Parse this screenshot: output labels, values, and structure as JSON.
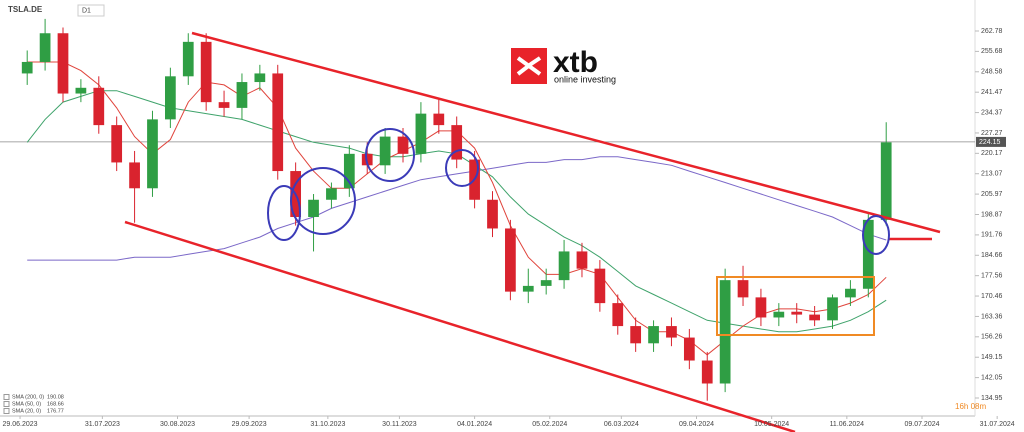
{
  "chart_data": {
    "type": "candlestick",
    "symbol": "TSLA.DE",
    "timeframe": "D1",
    "x": [
      2,
      7,
      12,
      17,
      22,
      27,
      32,
      37,
      42,
      47,
      52,
      57,
      62,
      67,
      72,
      77,
      82,
      87,
      92,
      97,
      102,
      107,
      112,
      117,
      122,
      127,
      132,
      137,
      142,
      147,
      152,
      157,
      162,
      167,
      172,
      177,
      182,
      187,
      192,
      197,
      202,
      207,
      212,
      217,
      222,
      227,
      232,
      237,
      242
    ],
    "open": [
      248,
      252,
      262,
      241,
      243,
      230,
      217,
      208,
      232,
      247,
      259,
      238,
      236,
      245,
      248,
      214,
      198,
      204,
      208,
      220,
      216,
      226,
      220,
      234,
      230,
      218,
      204,
      194,
      172,
      174,
      176,
      186,
      180,
      168,
      160,
      154,
      160,
      156,
      148,
      140,
      176,
      170,
      163,
      165,
      164,
      162,
      170,
      173,
      197
    ],
    "high": [
      256,
      267,
      264,
      246,
      247,
      233,
      221,
      235,
      250,
      262,
      262,
      242,
      248,
      251,
      251,
      217,
      206,
      210,
      223,
      224,
      229,
      229,
      238,
      239,
      233,
      221,
      207,
      197,
      180,
      180,
      190,
      189,
      183,
      171,
      163,
      162,
      163,
      159,
      151,
      180,
      181,
      173,
      168,
      168,
      167,
      171,
      176,
      199,
      231
    ],
    "low": [
      244,
      249,
      238,
      238,
      227,
      214,
      196,
      205,
      229,
      244,
      235,
      233,
      232,
      242,
      211,
      195,
      186,
      201,
      205,
      213,
      213,
      217,
      217,
      227,
      215,
      201,
      191,
      169,
      168,
      171,
      173,
      177,
      165,
      157,
      151,
      151,
      153,
      145,
      134,
      137,
      167,
      160,
      160,
      161,
      160,
      159,
      167,
      170,
      195
    ],
    "close": [
      252,
      262,
      241,
      243,
      230,
      217,
      208,
      232,
      247,
      259,
      238,
      236,
      245,
      248,
      214,
      198,
      204,
      208,
      220,
      216,
      226,
      220,
      234,
      230,
      218,
      204,
      194,
      172,
      174,
      176,
      186,
      180,
      168,
      160,
      154,
      160,
      156,
      148,
      140,
      176,
      170,
      163,
      165,
      164,
      162,
      170,
      173,
      197,
      224
    ],
    "up_color": "#2f9e44",
    "down_color": "#d9232e",
    "series": [
      {
        "name": "SMA (200, 0)",
        "last_value": 190.08,
        "color": "#7b68c8",
        "values": [
          183,
          183,
          183,
          183,
          183,
          183,
          184,
          184,
          184,
          185,
          186,
          187,
          189,
          191,
          194,
          196,
          198,
          201,
          203,
          205,
          207,
          209,
          211,
          212,
          213,
          214,
          215,
          216,
          217,
          217,
          218,
          218,
          219,
          219,
          218,
          217,
          216,
          214,
          212,
          210,
          208,
          206,
          204,
          202,
          200,
          198,
          195,
          192,
          190
        ]
      },
      {
        "name": "SMA (50, 0)",
        "last_value": 168.66,
        "color": "#3fa36b",
        "values": [
          224,
          232,
          238,
          240,
          242,
          242,
          240,
          238,
          236,
          235,
          234,
          233,
          232,
          230,
          228,
          226,
          224,
          223,
          222,
          220,
          219,
          219,
          220,
          221,
          220,
          216,
          212,
          205,
          199,
          195,
          191,
          188,
          184,
          179,
          174,
          171,
          168,
          165,
          162,
          161,
          160,
          159,
          158,
          158,
          159,
          160,
          162,
          165,
          169
        ]
      },
      {
        "name": "SMA (20, 0)",
        "last_value": 176.77,
        "color": "#e0443c",
        "values": [
          252,
          252,
          252,
          249,
          244,
          236,
          226,
          220,
          225,
          238,
          245,
          244,
          240,
          243,
          236,
          222,
          214,
          208,
          208,
          213,
          218,
          221,
          224,
          228,
          228,
          222,
          210,
          195,
          184,
          178,
          178,
          180,
          178,
          170,
          162,
          158,
          158,
          155,
          150,
          155,
          160,
          164,
          166,
          166,
          165,
          166,
          168,
          171,
          177
        ]
      }
    ],
    "last_price": 224.15,
    "countdown": "16h 08m",
    "xlim": [
      -5.6,
      280.5
    ],
    "ylim": [
      128.68,
      273.58
    ],
    "xticks": [
      {
        "value": 0,
        "label": "29.06.2023"
      },
      {
        "value": 23,
        "label": "31.07.2023"
      },
      {
        "value": 44,
        "label": "30.08.2023"
      },
      {
        "value": 64,
        "label": "29.09.2023"
      },
      {
        "value": 86,
        "label": "31.10.2023"
      },
      {
        "value": 106,
        "label": "30.11.2023"
      },
      {
        "value": 127,
        "label": "04.01.2024"
      },
      {
        "value": 148,
        "label": "05.02.2024"
      },
      {
        "value": 168,
        "label": "06.03.2024"
      },
      {
        "value": 189,
        "label": "09.04.2024"
      },
      {
        "value": 210,
        "label": "10.05.2024"
      },
      {
        "value": 231,
        "label": "11.06.2024"
      },
      {
        "value": 252,
        "label": "09.07.2024"
      },
      {
        "value": 273,
        "label": "31.07.2024"
      }
    ],
    "yticks": [
      262.78,
      255.68,
      248.58,
      241.47,
      234.37,
      227.27,
      220.17,
      213.07,
      205.97,
      198.87,
      191.76,
      184.66,
      177.56,
      170.46,
      163.36,
      156.26,
      149.15,
      142.05,
      134.95
    ],
    "logo": {
      "name": "xtb",
      "tagline": "online investing"
    }
  }
}
